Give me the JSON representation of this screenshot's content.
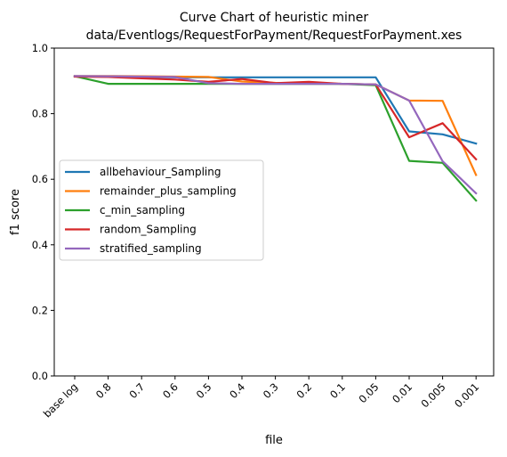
{
  "chart_data": {
    "type": "line",
    "title": "Curve Chart of heuristic miner",
    "subtitle": "data/Eventlogs/RequestForPayment/RequestForPayment.xes",
    "xlabel": "file",
    "ylabel": "f1 score",
    "ylim": [
      0,
      1.0
    ],
    "yticks": [
      "0.0",
      "0.2",
      "0.4",
      "0.6",
      "0.8",
      "1.0"
    ],
    "categories": [
      "base log",
      "0.8",
      "0.7",
      "0.6",
      "0.5",
      "0.4",
      "0.3",
      "0.2",
      "0.1",
      "0.05",
      "0.01",
      "0.005",
      "0.001"
    ],
    "grid": false,
    "legend_position": "center-left",
    "series": [
      {
        "name": "allbehaviour_Sampling",
        "color": "#1f77b4",
        "values": [
          0.914,
          0.913,
          0.912,
          0.911,
          0.911,
          0.911,
          0.911,
          0.911,
          0.911,
          0.911,
          0.746,
          0.737,
          0.709
        ]
      },
      {
        "name": "remainder_plus_sampling",
        "color": "#ff7f0e",
        "values": [
          0.915,
          0.915,
          0.914,
          0.913,
          0.912,
          0.898,
          0.894,
          0.893,
          0.891,
          0.889,
          0.84,
          0.839,
          0.613
        ]
      },
      {
        "name": "c_min_sampling",
        "color": "#2ca02c",
        "values": [
          0.914,
          0.891,
          0.891,
          0.891,
          0.891,
          0.891,
          0.891,
          0.891,
          0.891,
          0.887,
          0.656,
          0.65,
          0.535
        ]
      },
      {
        "name": "random_Sampling",
        "color": "#d62728",
        "values": [
          0.913,
          0.912,
          0.908,
          0.904,
          0.897,
          0.906,
          0.893,
          0.897,
          0.891,
          0.889,
          0.728,
          0.771,
          0.661
        ]
      },
      {
        "name": "stratified_sampling",
        "color": "#9467bd",
        "values": [
          0.915,
          0.914,
          0.913,
          0.912,
          0.893,
          0.891,
          0.891,
          0.891,
          0.891,
          0.889,
          0.84,
          0.655,
          0.557
        ]
      }
    ]
  }
}
